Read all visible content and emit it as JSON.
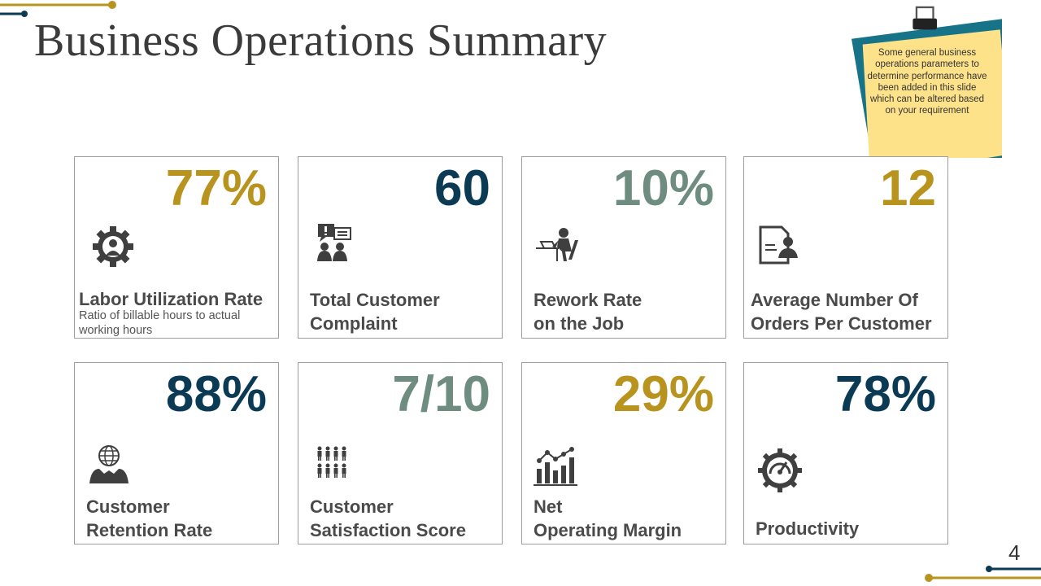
{
  "page": {
    "title": "Business Operations Summary",
    "page_number": "4"
  },
  "note": {
    "text": "Some general business operations parameters to determine performance have been added in this slide which can be altered based on your requirement"
  },
  "colors": {
    "gold": "#B8941F",
    "navy": "#0B3A54",
    "sage": "#6E8C80",
    "teal": "#177488",
    "note_yellow": "#FDE28A"
  },
  "cards": [
    {
      "value": "77%",
      "label_line1": "Labor Utilization Rate",
      "label_line2": "",
      "sub": "Ratio of billable hours to actual working hours",
      "color": "#B8941F",
      "icon": "gear-person-icon"
    },
    {
      "value": "60",
      "label_line1": "Total Customer",
      "label_line2": "Complaint",
      "sub": "",
      "color": "#0B3A54",
      "icon": "complaint-icon"
    },
    {
      "value": "10%",
      "label_line1": "Rework Rate",
      "label_line2": "on the Job",
      "sub": "",
      "color": "#6E8C80",
      "icon": "desk-worker-icon"
    },
    {
      "value": "12",
      "label_line1": "Average Number Of",
      "label_line2": "Orders Per Customer",
      "sub": "",
      "color": "#B8941F",
      "icon": "document-person-icon"
    },
    {
      "value": "88%",
      "label_line1": "Customer",
      "label_line2": "Retention Rate",
      "sub": "",
      "color": "#0B3A54",
      "icon": "globe-handshake-icon"
    },
    {
      "value": "7/10",
      "label_line1": "Customer",
      "label_line2": "Satisfaction Score",
      "sub": "",
      "color": "#6E8C80",
      "icon": "people-grid-icon"
    },
    {
      "value": "29%",
      "label_line1": "Net",
      "label_line2": "Operating Margin",
      "sub": "",
      "color": "#B8941F",
      "icon": "bar-chart-icon"
    },
    {
      "value": "78%",
      "label_line1": "Productivity",
      "label_line2": "",
      "sub": "",
      "color": "#0B3A54",
      "icon": "gauge-gear-icon"
    }
  ]
}
